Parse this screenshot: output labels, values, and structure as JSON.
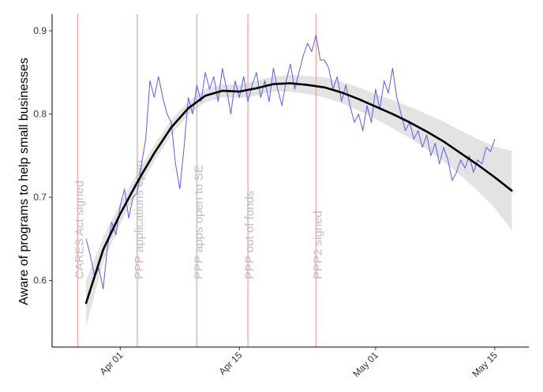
{
  "chart_data": {
    "type": "line",
    "title": "",
    "xlabel": "",
    "ylabel": "Aware of programs to help small businesses",
    "x_axis": {
      "type": "date",
      "range": [
        "2020-03-24",
        "2020-05-19"
      ],
      "ticks": [
        {
          "date": "2020-04-01",
          "label": "Apr 01"
        },
        {
          "date": "2020-04-15",
          "label": "Apr 15"
        },
        {
          "date": "2020-05-01",
          "label": "May 01"
        },
        {
          "date": "2020-05-15",
          "label": "May 15"
        }
      ]
    },
    "y_axis": {
      "range": [
        0.52,
        0.92
      ],
      "ticks": [
        {
          "value": 0.6,
          "label": "0.6"
        },
        {
          "value": 0.7,
          "label": "0.7"
        },
        {
          "value": 0.8,
          "label": "0.8"
        },
        {
          "value": 0.9,
          "label": "0.9"
        }
      ]
    },
    "grid": false,
    "legend": "none",
    "events": [
      {
        "date": "2020-03-27",
        "label": "CARES Act signed"
      },
      {
        "date": "2020-04-03",
        "label": "PPP applications open"
      },
      {
        "date": "2020-04-10",
        "label": "PPP apps open to SE"
      },
      {
        "date": "2020-04-16",
        "label": "PPP out of funds"
      },
      {
        "date": "2020-04-24",
        "label": "PPP2 signed"
      }
    ],
    "colors": {
      "raw_series": "#5b5bf0",
      "smooth_line": "#000000",
      "confidence_band": "#d9d9d9",
      "event_lines": "#f4a6a6",
      "event_labels": "#bdbdbd"
    },
    "series": [
      {
        "style": "raw",
        "points": [
          [
            "2020-03-28",
            0.65
          ],
          [
            "2020-03-28 12:00",
            0.63
          ],
          [
            "2020-03-29",
            0.605
          ],
          [
            "2020-03-29 12:00",
            0.615
          ],
          [
            "2020-03-30",
            0.59
          ],
          [
            "2020-03-30 12:00",
            0.64
          ],
          [
            "2020-03-31",
            0.67
          ],
          [
            "2020-03-31 12:00",
            0.655
          ],
          [
            "2020-04-01",
            0.69
          ],
          [
            "2020-04-01 12:00",
            0.71
          ],
          [
            "2020-04-02",
            0.675
          ],
          [
            "2020-04-02 12:00",
            0.7
          ],
          [
            "2020-04-03",
            0.705
          ],
          [
            "2020-04-03 12:00",
            0.74
          ],
          [
            "2020-04-04",
            0.77
          ],
          [
            "2020-04-04 12:00",
            0.84
          ],
          [
            "2020-04-05",
            0.82
          ],
          [
            "2020-04-05 12:00",
            0.845
          ],
          [
            "2020-04-06",
            0.82
          ],
          [
            "2020-04-06 12:00",
            0.8
          ],
          [
            "2020-04-07",
            0.79
          ],
          [
            "2020-04-07 12:00",
            0.74
          ],
          [
            "2020-04-08",
            0.71
          ],
          [
            "2020-04-08 12:00",
            0.76
          ],
          [
            "2020-04-09",
            0.82
          ],
          [
            "2020-04-09 12:00",
            0.8
          ],
          [
            "2020-04-10",
            0.835
          ],
          [
            "2020-04-10 12:00",
            0.815
          ],
          [
            "2020-04-11",
            0.85
          ],
          [
            "2020-04-11 12:00",
            0.83
          ],
          [
            "2020-04-12",
            0.845
          ],
          [
            "2020-04-12 12:00",
            0.815
          ],
          [
            "2020-04-13",
            0.855
          ],
          [
            "2020-04-13 12:00",
            0.83
          ],
          [
            "2020-04-14",
            0.8
          ],
          [
            "2020-04-14 12:00",
            0.84
          ],
          [
            "2020-04-15",
            0.82
          ],
          [
            "2020-04-15 12:00",
            0.845
          ],
          [
            "2020-04-16",
            0.815
          ],
          [
            "2020-04-16 12:00",
            0.835
          ],
          [
            "2020-04-17",
            0.85
          ],
          [
            "2020-04-17 12:00",
            0.82
          ],
          [
            "2020-04-18",
            0.84
          ],
          [
            "2020-04-18 12:00",
            0.815
          ],
          [
            "2020-04-19",
            0.855
          ],
          [
            "2020-04-19 12:00",
            0.83
          ],
          [
            "2020-04-20",
            0.81
          ],
          [
            "2020-04-20 12:00",
            0.84
          ],
          [
            "2020-04-21",
            0.86
          ],
          [
            "2020-04-21 12:00",
            0.83
          ],
          [
            "2020-04-22",
            0.85
          ],
          [
            "2020-04-22 12:00",
            0.87
          ],
          [
            "2020-04-23",
            0.885
          ],
          [
            "2020-04-23 12:00",
            0.875
          ],
          [
            "2020-04-24",
            0.895
          ],
          [
            "2020-04-24 12:00",
            0.865
          ],
          [
            "2020-04-25",
            0.865
          ],
          [
            "2020-04-25 12:00",
            0.855
          ],
          [
            "2020-04-26",
            0.83
          ],
          [
            "2020-04-26 12:00",
            0.845
          ],
          [
            "2020-04-27",
            0.815
          ],
          [
            "2020-04-27 12:00",
            0.835
          ],
          [
            "2020-04-28",
            0.81
          ],
          [
            "2020-04-28 12:00",
            0.79
          ],
          [
            "2020-04-29",
            0.8
          ],
          [
            "2020-04-29 12:00",
            0.78
          ],
          [
            "2020-04-30",
            0.81
          ],
          [
            "2020-04-30 12:00",
            0.79
          ],
          [
            "2020-05-01",
            0.83
          ],
          [
            "2020-05-01 12:00",
            0.805
          ],
          [
            "2020-05-02",
            0.84
          ],
          [
            "2020-05-02 12:00",
            0.825
          ],
          [
            "2020-05-03",
            0.855
          ],
          [
            "2020-05-03 12:00",
            0.82
          ],
          [
            "2020-05-04",
            0.8
          ],
          [
            "2020-05-04 12:00",
            0.78
          ],
          [
            "2020-05-05",
            0.79
          ],
          [
            "2020-05-05 12:00",
            0.77
          ],
          [
            "2020-05-06",
            0.78
          ],
          [
            "2020-05-06 12:00",
            0.76
          ],
          [
            "2020-05-07",
            0.775
          ],
          [
            "2020-05-07 12:00",
            0.75
          ],
          [
            "2020-05-08",
            0.765
          ],
          [
            "2020-05-08 12:00",
            0.74
          ],
          [
            "2020-05-09",
            0.76
          ],
          [
            "2020-05-09 12:00",
            0.745
          ],
          [
            "2020-05-10",
            0.72
          ],
          [
            "2020-05-10 12:00",
            0.73
          ],
          [
            "2020-05-11",
            0.745
          ],
          [
            "2020-05-11 12:00",
            0.735
          ],
          [
            "2020-05-12",
            0.75
          ],
          [
            "2020-05-12 12:00",
            0.73
          ],
          [
            "2020-05-13",
            0.745
          ],
          [
            "2020-05-13 12:00",
            0.74
          ],
          [
            "2020-05-14",
            0.76
          ],
          [
            "2020-05-14 12:00",
            0.755
          ],
          [
            "2020-05-15",
            0.77
          ]
        ]
      },
      {
        "style": "smooth",
        "points": [
          [
            "2020-03-28",
            0.573
          ],
          [
            "2020-03-30",
            0.637
          ],
          [
            "2020-04-01",
            0.68
          ],
          [
            "2020-04-03",
            0.718
          ],
          [
            "2020-04-05",
            0.753
          ],
          [
            "2020-04-07",
            0.784
          ],
          [
            "2020-04-09",
            0.807
          ],
          [
            "2020-04-11",
            0.822
          ],
          [
            "2020-04-13",
            0.828
          ],
          [
            "2020-04-15",
            0.827
          ],
          [
            "2020-04-17",
            0.831
          ],
          [
            "2020-04-19",
            0.836
          ],
          [
            "2020-04-21",
            0.837
          ],
          [
            "2020-04-23",
            0.835
          ],
          [
            "2020-04-25",
            0.832
          ],
          [
            "2020-04-27",
            0.826
          ],
          [
            "2020-04-29",
            0.818
          ],
          [
            "2020-05-01",
            0.809
          ],
          [
            "2020-05-03",
            0.8
          ],
          [
            "2020-05-05",
            0.79
          ],
          [
            "2020-05-07",
            0.779
          ],
          [
            "2020-05-09",
            0.767
          ],
          [
            "2020-05-11",
            0.753
          ],
          [
            "2020-05-13",
            0.739
          ],
          [
            "2020-05-15",
            0.724
          ],
          [
            "2020-05-17",
            0.708
          ]
        ],
        "band": [
          [
            "2020-03-28",
            0.545,
            0.6
          ],
          [
            "2020-03-30",
            0.622,
            0.652
          ],
          [
            "2020-04-01",
            0.668,
            0.692
          ],
          [
            "2020-04-03",
            0.707,
            0.729
          ],
          [
            "2020-04-05",
            0.743,
            0.763
          ],
          [
            "2020-04-07",
            0.775,
            0.793
          ],
          [
            "2020-04-09",
            0.799,
            0.815
          ],
          [
            "2020-04-11",
            0.814,
            0.83
          ],
          [
            "2020-04-13",
            0.82,
            0.836
          ],
          [
            "2020-04-15",
            0.819,
            0.835
          ],
          [
            "2020-04-17",
            0.822,
            0.84
          ],
          [
            "2020-04-19",
            0.827,
            0.845
          ],
          [
            "2020-04-21",
            0.827,
            0.847
          ],
          [
            "2020-04-23",
            0.824,
            0.846
          ],
          [
            "2020-04-25",
            0.82,
            0.844
          ],
          [
            "2020-04-27",
            0.813,
            0.839
          ],
          [
            "2020-04-29",
            0.804,
            0.832
          ],
          [
            "2020-05-01",
            0.794,
            0.824
          ],
          [
            "2020-05-03",
            0.783,
            0.817
          ],
          [
            "2020-05-05",
            0.771,
            0.809
          ],
          [
            "2020-05-07",
            0.758,
            0.8
          ],
          [
            "2020-05-09",
            0.743,
            0.791
          ],
          [
            "2020-05-11",
            0.726,
            0.78
          ],
          [
            "2020-05-13",
            0.708,
            0.77
          ],
          [
            "2020-05-15",
            0.687,
            0.761
          ],
          [
            "2020-05-17",
            0.66,
            0.756
          ]
        ]
      }
    ]
  }
}
